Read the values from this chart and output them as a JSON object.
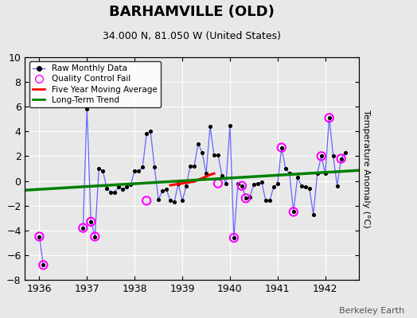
{
  "title": "BARHAMVILLE (OLD)",
  "subtitle": "34.000 N, 81.050 W (United States)",
  "ylabel": "Temperature Anomaly (°C)",
  "watermark": "Berkeley Earth",
  "xlim": [
    1935.7,
    1942.7
  ],
  "ylim": [
    -8,
    10
  ],
  "yticks": [
    -8,
    -6,
    -4,
    -2,
    0,
    2,
    4,
    6,
    8,
    10
  ],
  "xticks": [
    1936,
    1937,
    1938,
    1939,
    1940,
    1941,
    1942
  ],
  "bg_color": "#e8e8e8",
  "raw_x": [
    1936.0,
    1936.083,
    1936.167,
    1936.25,
    1936.333,
    1936.417,
    1936.5,
    1936.583,
    1936.667,
    1936.75,
    1936.833,
    1936.917,
    1937.0,
    1937.083,
    1937.167,
    1937.25,
    1937.333,
    1937.417,
    1937.5,
    1937.583,
    1937.667,
    1937.75,
    1937.833,
    1937.917,
    1938.0,
    1938.083,
    1938.167,
    1938.25,
    1938.333,
    1938.417,
    1938.5,
    1938.583,
    1938.667,
    1938.75,
    1938.833,
    1938.917,
    1939.0,
    1939.083,
    1939.167,
    1939.25,
    1939.333,
    1939.417,
    1939.5,
    1939.583,
    1939.667,
    1939.75,
    1939.833,
    1939.917,
    1940.0,
    1940.083,
    1940.167,
    1940.25,
    1940.333,
    1940.417,
    1940.5,
    1940.583,
    1940.667,
    1940.75,
    1940.833,
    1940.917,
    1941.0,
    1941.083,
    1941.167,
    1941.25,
    1941.333,
    1941.417,
    1941.5,
    1941.583,
    1941.667,
    1941.75,
    1941.833,
    1941.917,
    1942.0,
    1942.083,
    1942.167,
    1942.25,
    1942.333,
    1942.417
  ],
  "raw_y": [
    -4.5,
    -6.8,
    null,
    null,
    null,
    null,
    null,
    null,
    null,
    null,
    null,
    -3.8,
    5.8,
    -3.3,
    -4.5,
    1.0,
    0.8,
    -0.6,
    -0.9,
    -0.9,
    -0.5,
    -0.7,
    -0.5,
    -0.3,
    0.8,
    0.8,
    1.1,
    3.8,
    4.0,
    1.1,
    -1.5,
    -0.8,
    -0.7,
    -1.6,
    -1.7,
    -0.2,
    -1.6,
    -0.4,
    1.2,
    1.2,
    3.0,
    2.3,
    0.6,
    4.4,
    2.1,
    2.1,
    0.4,
    -0.2,
    4.5,
    -4.6,
    -0.2,
    -0.4,
    -1.4,
    -1.3,
    -0.3,
    -0.2,
    -0.1,
    -1.6,
    -1.6,
    -0.5,
    -0.2,
    2.7,
    1.0,
    0.6,
    -2.5,
    0.3,
    -0.4,
    -0.5,
    -0.6,
    -2.7,
    0.6,
    2.0,
    0.6,
    5.1,
    2.0,
    -0.4,
    1.8,
    2.3
  ],
  "qc_fail_x": [
    1936.0,
    1936.083,
    1936.917,
    1937.083,
    1937.167,
    1938.25,
    1939.75,
    1940.083,
    1940.25,
    1940.333,
    1941.083,
    1941.333,
    1941.917,
    1942.083,
    1942.333
  ],
  "qc_fail_y": [
    -4.5,
    -6.8,
    -3.8,
    -3.3,
    -4.5,
    -1.6,
    -0.2,
    -4.6,
    -0.4,
    -1.4,
    2.7,
    -2.5,
    2.0,
    5.1,
    1.8
  ],
  "moving_avg_x": [
    1938.75,
    1939.0,
    1939.25,
    1939.5,
    1939.583,
    1939.667
  ],
  "moving_avg_y": [
    -0.35,
    -0.2,
    -0.05,
    0.35,
    0.5,
    0.6
  ],
  "trend_x": [
    1935.7,
    1942.7
  ],
  "trend_y": [
    -0.75,
    0.85
  ],
  "raw_line_color": "#6666ff",
  "raw_marker_color": "black",
  "qc_color": "magenta",
  "moving_avg_color": "red",
  "trend_color": "green",
  "title_fontsize": 13,
  "subtitle_fontsize": 9,
  "ylabel_fontsize": 8,
  "tick_labelsize": 9,
  "watermark_fontsize": 8,
  "legend_fontsize": 7.5
}
